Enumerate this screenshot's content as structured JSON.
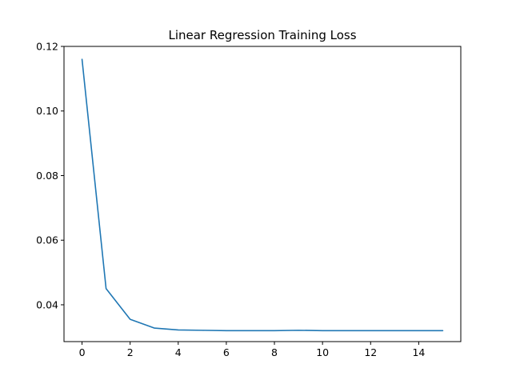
{
  "chart_data": {
    "type": "line",
    "title": "Linear Regression Training Loss",
    "xlabel": "",
    "ylabel": "",
    "xlim": [
      -0.75,
      15.75
    ],
    "ylim": [
      0.0286,
      0.12
    ],
    "xticks": [
      0,
      2,
      4,
      6,
      8,
      10,
      12,
      14
    ],
    "yticks": [
      0.04,
      0.06,
      0.08,
      0.1,
      0.12
    ],
    "xtick_labels": [
      "0",
      "2",
      "4",
      "6",
      "8",
      "10",
      "12",
      "14"
    ],
    "ytick_labels": [
      "0.04",
      "0.06",
      "0.08",
      "0.10",
      "0.12"
    ],
    "grid": false,
    "series": [
      {
        "color": "#1f77b4",
        "x": [
          0,
          1,
          2,
          3,
          4,
          5,
          6,
          7,
          8,
          9,
          10,
          11,
          12,
          13,
          14,
          15
        ],
        "y": [
          0.116,
          0.045,
          0.0355,
          0.0328,
          0.0322,
          0.0321,
          0.032,
          0.032,
          0.032,
          0.0321,
          0.032,
          0.032,
          0.032,
          0.032,
          0.032,
          0.032
        ]
      }
    ]
  }
}
